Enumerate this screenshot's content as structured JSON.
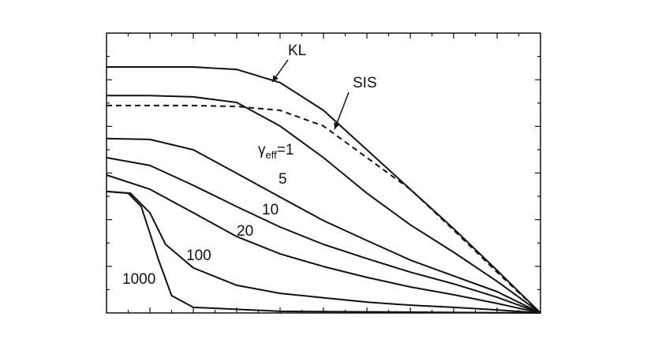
{
  "chart_data": {
    "type": "line",
    "xlim": [
      0,
      1
    ],
    "ylim": [
      0,
      1
    ],
    "series": [
      {
        "color": "#111111",
        "dashed": false,
        "x": [
          0,
          0.1,
          0.2,
          0.3,
          0.4,
          0.5,
          0.6,
          0.7,
          0.8,
          0.9,
          1.0
        ],
        "values": [
          0.879,
          0.879,
          0.879,
          0.87,
          0.823,
          0.724,
          0.583,
          0.442,
          0.301,
          0.152,
          0
        ]
      },
      {
        "color": "#111111",
        "dashed": true,
        "x": [
          0,
          0.1,
          0.2,
          0.3,
          0.4,
          0.5,
          0.6,
          0.7,
          0.8,
          0.9,
          1.0
        ],
        "values": [
          0.741,
          0.741,
          0.741,
          0.738,
          0.724,
          0.668,
          0.555,
          0.442,
          0.296,
          0.146,
          0
        ]
      },
      {
        "color": "#111111",
        "dashed": false,
        "x": [
          0,
          0.1,
          0.2,
          0.3,
          0.4,
          0.5,
          0.6,
          0.7,
          0.8,
          0.9,
          1.0
        ],
        "values": [
          0.777,
          0.777,
          0.772,
          0.752,
          0.668,
          0.555,
          0.428,
          0.315,
          0.217,
          0.113,
          0
        ]
      },
      {
        "color": "#111111",
        "dashed": false,
        "x": [
          0,
          0.1,
          0.2,
          0.3,
          0.4,
          0.5,
          0.6,
          0.7,
          0.8,
          0.9,
          1.0
        ],
        "values": [
          0.623,
          0.62,
          0.583,
          0.499,
          0.414,
          0.33,
          0.259,
          0.189,
          0.132,
          0.076,
          0
        ]
      },
      {
        "color": "#111111",
        "dashed": false,
        "x": [
          0,
          0.1,
          0.2,
          0.3,
          0.4,
          0.5,
          0.6,
          0.7,
          0.8,
          0.9,
          1.0
        ],
        "values": [
          0.555,
          0.527,
          0.456,
          0.38,
          0.307,
          0.245,
          0.194,
          0.146,
          0.104,
          0.056,
          0
        ]
      },
      {
        "color": "#111111",
        "dashed": false,
        "x": [
          0,
          0.1,
          0.2,
          0.3,
          0.4,
          0.5,
          0.6,
          0.7,
          0.8,
          0.9,
          1.0
        ],
        "values": [
          0.493,
          0.442,
          0.358,
          0.273,
          0.211,
          0.166,
          0.127,
          0.093,
          0.065,
          0.034,
          0
        ]
      },
      {
        "color": "#111111",
        "dashed": false,
        "x": [
          0,
          0.055,
          0.1,
          0.136,
          0.2,
          0.3,
          0.4,
          0.5,
          0.6,
          0.7,
          0.8,
          0.9,
          1.0
        ],
        "values": [
          0.434,
          0.428,
          0.358,
          0.245,
          0.161,
          0.099,
          0.07,
          0.054,
          0.039,
          0.028,
          0.02,
          0.011,
          0
        ]
      },
      {
        "color": "#111111",
        "dashed": false,
        "x": [
          0,
          0.05,
          0.08,
          0.12,
          0.15,
          0.2,
          0.4,
          1.0
        ],
        "values": [
          0.434,
          0.428,
          0.38,
          0.189,
          0.062,
          0.02,
          0.006,
          0
        ]
      }
    ],
    "annotations": [
      {
        "text": "KL"
      },
      {
        "text": "SIS"
      },
      {
        "text": "γ",
        "sub": "eff",
        "suffix": "=1"
      },
      {
        "text": "5"
      },
      {
        "text": "10"
      },
      {
        "text": "20"
      },
      {
        "text": "100"
      },
      {
        "text": "1000"
      }
    ]
  }
}
